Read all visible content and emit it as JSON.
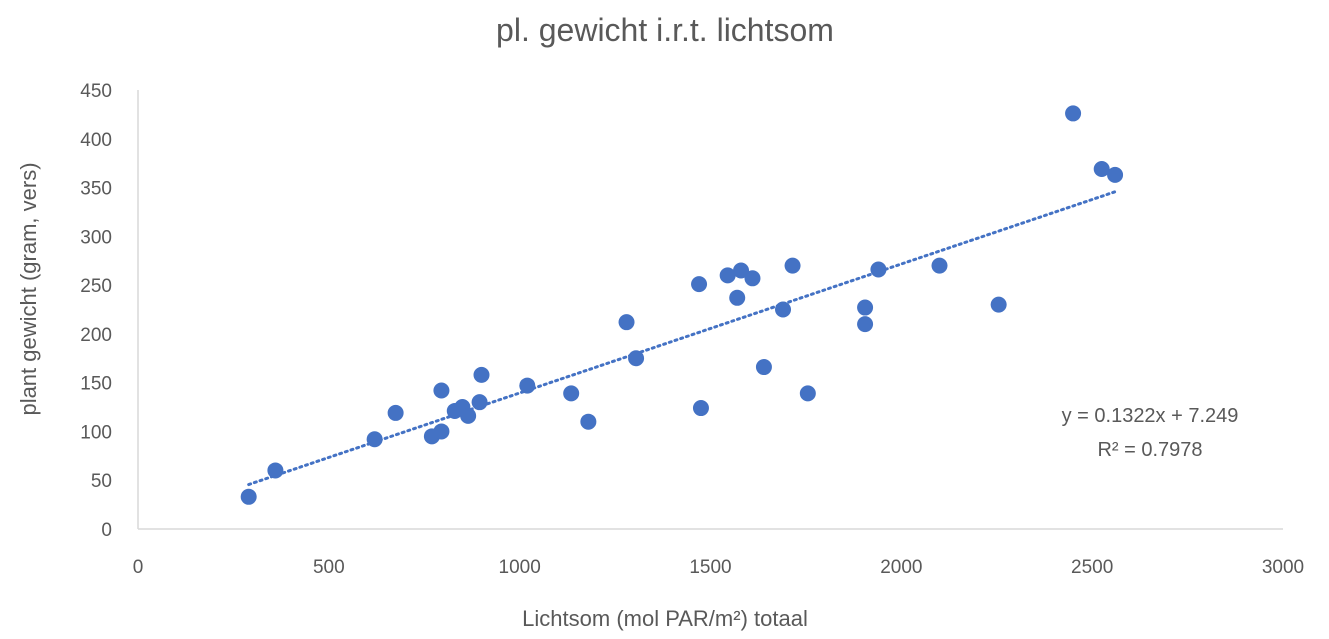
{
  "chart_data": {
    "type": "scatter",
    "title": "pl. gewicht i.r.t. lichtsom",
    "xlabel": "Lichtsom (mol PAR/m²) totaal",
    "ylabel": "plant gewicht (gram, vers)",
    "xlim": [
      0,
      3000
    ],
    "ylim": [
      0,
      450
    ],
    "x_ticks": [
      "0",
      "500",
      "1000",
      "1500",
      "2000",
      "2500",
      "3000"
    ],
    "y_ticks": [
      "0",
      "50",
      "100",
      "150",
      "200",
      "250",
      "300",
      "350",
      "400",
      "450"
    ],
    "grid": false,
    "legend": "none",
    "marker_color": "#4472C4",
    "trendline_color": "#4472C4",
    "series": [
      {
        "points": [
          [
            290,
            33
          ],
          [
            360,
            60
          ],
          [
            620,
            92
          ],
          [
            675,
            119
          ],
          [
            770,
            95
          ],
          [
            795,
            100
          ],
          [
            795,
            142
          ],
          [
            830,
            121
          ],
          [
            850,
            125
          ],
          [
            865,
            116
          ],
          [
            895,
            130
          ],
          [
            900,
            158
          ],
          [
            1020,
            147
          ],
          [
            1135,
            139
          ],
          [
            1180,
            110
          ],
          [
            1280,
            212
          ],
          [
            1305,
            175
          ],
          [
            1470,
            251
          ],
          [
            1475,
            124
          ],
          [
            1545,
            260
          ],
          [
            1570,
            237
          ],
          [
            1580,
            265
          ],
          [
            1610,
            257
          ],
          [
            1640,
            166
          ],
          [
            1690,
            225
          ],
          [
            1715,
            270
          ],
          [
            1755,
            139
          ],
          [
            1905,
            227
          ],
          [
            1905,
            210
          ],
          [
            1940,
            266
          ],
          [
            2100,
            270
          ],
          [
            2255,
            230
          ],
          [
            2450,
            426
          ],
          [
            2525,
            369
          ],
          [
            2560,
            363
          ]
        ]
      }
    ],
    "trendline": {
      "type": "linear",
      "slope": 0.1322,
      "intercept": 7.249,
      "x_range": [
        290,
        2560
      ]
    },
    "annotations": {
      "equation": "y = 0.1322x + 7.249",
      "r_squared": "R² = 0.7978"
    }
  }
}
